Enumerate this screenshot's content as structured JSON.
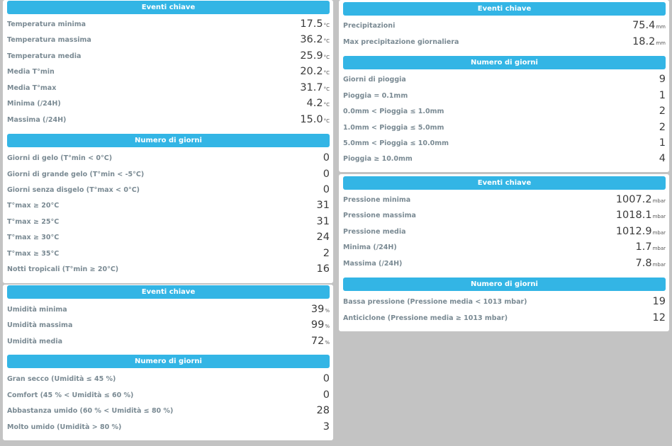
{
  "temperature": {
    "key_events_title": "Eventi chiave",
    "key_events": [
      {
        "label": "Temperatura minima",
        "value": "17.5",
        "unit": "°C"
      },
      {
        "label": "Temperatura massima",
        "value": "36.2",
        "unit": "°C"
      },
      {
        "label": "Temperatura media",
        "value": "25.9",
        "unit": "°C"
      },
      {
        "label": "Media T°min",
        "value": "20.2",
        "unit": "°C"
      },
      {
        "label": "Media T°max",
        "value": "31.7",
        "unit": "°C"
      },
      {
        "label": "Minima (/24H)",
        "value": "4.2",
        "unit": "°C"
      },
      {
        "label": "Massima (/24H)",
        "value": "15.0",
        "unit": "°C"
      }
    ],
    "days_title": "Numero di giorni",
    "days": [
      {
        "label": "Giorni di gelo (T°min < 0°C)",
        "value": "0"
      },
      {
        "label": "Giorni di grande gelo (T°min < -5°C)",
        "value": "0"
      },
      {
        "label": "Giorni senza disgelo (T°max < 0°C)",
        "value": "0"
      },
      {
        "label": "T°max ≥ 20°C",
        "value": "31"
      },
      {
        "label": "T°max ≥ 25°C",
        "value": "31"
      },
      {
        "label": "T°max ≥ 30°C",
        "value": "24"
      },
      {
        "label": "T°max ≥ 35°C",
        "value": "2"
      },
      {
        "label": "Notti tropicali (T°min ≥ 20°C)",
        "value": "16"
      }
    ]
  },
  "humidity": {
    "key_events_title": "Eventi chiave",
    "key_events": [
      {
        "label": "Umidità minima",
        "value": "39",
        "unit": "%"
      },
      {
        "label": "Umidità massima",
        "value": "99",
        "unit": "%"
      },
      {
        "label": "Umidità media",
        "value": "72",
        "unit": "%"
      }
    ],
    "days_title": "Numero di giorni",
    "days": [
      {
        "label": "Gran secco (Umidità ≤ 45 %)",
        "value": "0"
      },
      {
        "label": "Comfort (45 % < Umidità ≤ 60 %)",
        "value": "0"
      },
      {
        "label": "Abbastanza umido (60 % < Umidità ≤ 80 %)",
        "value": "28"
      },
      {
        "label": "Molto umido (Umidità > 80 %)",
        "value": "3"
      }
    ]
  },
  "precipitation": {
    "key_events": [
      {
        "label": "Precipitazioni",
        "value": "75.4",
        "unit": "mm"
      },
      {
        "label": "Max precipitazione giornaliera",
        "value": "18.2",
        "unit": "mm"
      }
    ],
    "days_title": "Numero di giorni",
    "days": [
      {
        "label": "Giorni di pioggia",
        "value": "9"
      },
      {
        "label": "Pioggia = 0.1mm",
        "value": "1"
      },
      {
        "label": "0.0mm < Pioggia ≤ 1.0mm",
        "value": "2"
      },
      {
        "label": "1.0mm < Pioggia ≤ 5.0mm",
        "value": "2"
      },
      {
        "label": "5.0mm < Pioggia ≤ 10.0mm",
        "value": "1"
      },
      {
        "label": "Pioggia ≥ 10.0mm",
        "value": "4"
      }
    ],
    "key_events_title": "Eventi chiave"
  },
  "pressure": {
    "key_events_title": "Eventi chiave",
    "key_events": [
      {
        "label": "Pressione minima",
        "value": "1007.2",
        "unit": "mbar"
      },
      {
        "label": "Pressione massima",
        "value": "1018.1",
        "unit": "mbar"
      },
      {
        "label": "Pressione media",
        "value": "1012.9",
        "unit": "mbar"
      },
      {
        "label": "Minima (/24H)",
        "value": "1.7",
        "unit": "mbar"
      },
      {
        "label": "Massima (/24H)",
        "value": "7.8",
        "unit": "mbar"
      }
    ],
    "days_title": "Numero di giorni",
    "days": [
      {
        "label": "Bassa pressione  (Pressione media < 1013 mbar)",
        "value": "19"
      },
      {
        "label": "Anticiclone (Pressione media ≥ 1013 mbar)",
        "value": "12"
      }
    ]
  },
  "colors": {
    "header": "#33b5e5",
    "label": "#7a8a93",
    "background": "#c3c3c3",
    "panel": "#ffffff"
  }
}
